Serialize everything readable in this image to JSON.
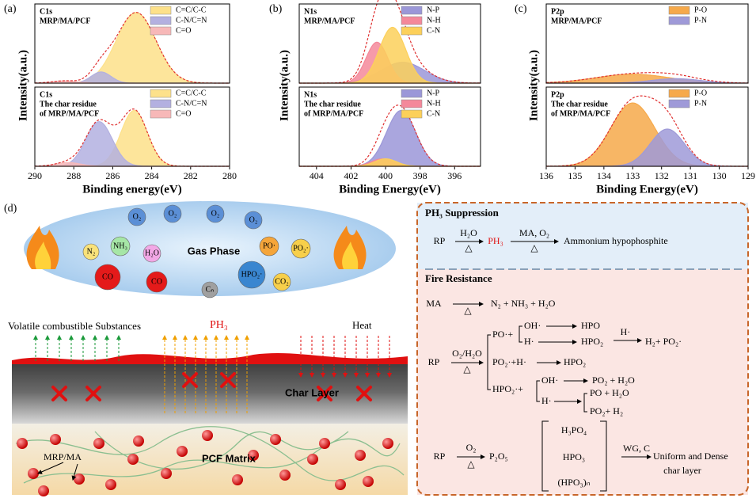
{
  "chart_data": [
    {
      "type": "line",
      "panel_label": "(a)",
      "xlabel": "Binding energy(eV)",
      "ylabel": "Intensity(a.u.)",
      "xlim": [
        290,
        280
      ],
      "xticks": [
        290,
        288,
        286,
        284,
        282,
        280
      ],
      "ylim": [
        0,
        1
      ],
      "subplots": [
        {
          "text": [
            "C1s",
            "MRP/MA/PCF"
          ],
          "series": [
            {
              "name": "C=C/C-C",
              "color": "#fde18a",
              "center": 284.8,
              "height": 0.95,
              "fwhm": 2.4
            },
            {
              "name": "C-N/C=N",
              "color": "#b3b0e0",
              "center": 286.6,
              "height": 0.15,
              "fwhm": 1.2
            },
            {
              "name": "C=O",
              "color": "#f7b8b8",
              "center": 288.5,
              "height": 0.03,
              "fwhm": 1.5
            }
          ]
        },
        {
          "text": [
            "C1s",
            "The char residue",
            "of MRP/MA/PCF"
          ],
          "series": [
            {
              "name": "C=C/C-C",
              "color": "#fde18a",
              "center": 284.9,
              "height": 0.75,
              "fwhm": 1.6
            },
            {
              "name": "C-N/C=N",
              "color": "#b3b0e0",
              "center": 286.7,
              "height": 0.6,
              "fwhm": 1.6
            },
            {
              "name": "C=O",
              "color": "#f7b8b8",
              "center": 288.3,
              "height": 0.05,
              "fwhm": 1.5
            }
          ]
        }
      ]
    },
    {
      "type": "line",
      "panel_label": "(b)",
      "xlabel": "Binding Energy(eV)",
      "ylabel": "Intensity(a.u.)",
      "xlim": [
        405,
        394.5
      ],
      "xticks": [
        404,
        402,
        400,
        398,
        396
      ],
      "ylim": [
        0,
        1
      ],
      "subplots": [
        {
          "text": [
            "N1s",
            "MRP/MA/PCF"
          ],
          "series": [
            {
              "name": "N-P",
              "color": "#9b97d8",
              "center": 399,
              "height": 0.28,
              "fwhm": 3
            },
            {
              "name": "N-H",
              "color": "#f4889a",
              "center": 400.5,
              "height": 0.55,
              "fwhm": 1.5
            },
            {
              "name": "C-N",
              "color": "#fcd05a",
              "center": 399.6,
              "height": 0.75,
              "fwhm": 1.8
            }
          ]
        },
        {
          "text": [
            "N1s",
            "The char residue",
            "of MRP/MA/PCF"
          ],
          "series": [
            {
              "name": "N-P",
              "color": "#9b97d8",
              "center": 399.1,
              "height": 0.75,
              "fwhm": 2
            },
            {
              "name": "N-H",
              "color": "#f4889a",
              "center": 400.2,
              "height": 0.1,
              "fwhm": 1.5
            },
            {
              "name": "C-N",
              "color": "#fcd05a",
              "center": 400,
              "height": 0.1,
              "fwhm": 1.5
            }
          ]
        }
      ]
    },
    {
      "type": "line",
      "panel_label": "(c)",
      "xlabel": "Binding Energy(eV)",
      "ylabel": "Intensity(a.u.)",
      "xlim": [
        136,
        129
      ],
      "xticks": [
        136,
        135,
        134,
        133,
        132,
        131,
        130,
        129
      ],
      "ylim": [
        0,
        1
      ],
      "subplots": [
        {
          "text": [
            "P2p",
            "MRP/MA/PCF"
          ],
          "series": [
            {
              "name": "P-O",
              "color": "#f6a94a",
              "center": 133,
              "height": 0.12,
              "fwhm": 3
            },
            {
              "name": "P-N",
              "color": "#9f9ad8",
              "center": 131.5,
              "height": 0.06,
              "fwhm": 2
            }
          ]
        },
        {
          "text": [
            "P2p",
            "The char residue",
            "of MRP/MA/PCF"
          ],
          "series": [
            {
              "name": "P-O",
              "color": "#f6a94a",
              "center": 133,
              "height": 0.85,
              "fwhm": 1.8
            },
            {
              "name": "P-N",
              "color": "#9f9ad8",
              "center": 131.8,
              "height": 0.5,
              "fwhm": 1.4
            }
          ]
        }
      ]
    }
  ],
  "scheme": {
    "panel_label": "(d)",
    "gas_title": "Gas Phase",
    "molecules": [
      "O₂",
      "O₂",
      "O₂",
      "O₂",
      "N₂",
      "NH₃",
      "H₂O",
      "CO",
      "CO",
      "Cₙ",
      "HPO₂·",
      "PO·",
      "PO₂·",
      "CO₂"
    ],
    "volatile": "Volatile combustible Substances",
    "ph3": "PH₃",
    "heat": "Heat",
    "char": "Char Layer",
    "matrix": "PCF Matrix",
    "mrp": "MRP/MA",
    "suppression_title": "PH₃ Suppression",
    "fire_title": "Fire Resistance",
    "items": [
      "RP",
      "H₂O",
      "△",
      "PH₃",
      "MA, O₂",
      "△",
      "Ammonium hypophosphite",
      "MA",
      "△",
      "N₂ + NH₃ + H₂O",
      "RP",
      "O₂/H₂O",
      "△",
      "PO·+",
      "OH·",
      "HPO",
      "H·",
      "HPO₂",
      "H·",
      "H₂+ PO₂·",
      "PO₂·+H·",
      "HPO₂",
      "HPO₂·+",
      "OH·",
      "PO₂ + H₂O",
      "H·",
      "PO + H₂O",
      "PO₂+ H₂",
      "RP",
      "O₂",
      "△",
      "P₂O₅",
      "H₃PO₄",
      "HPO₃",
      "(HPO₃)ₙ",
      "WG, C",
      "Uniform and Dense",
      "char layer"
    ]
  }
}
